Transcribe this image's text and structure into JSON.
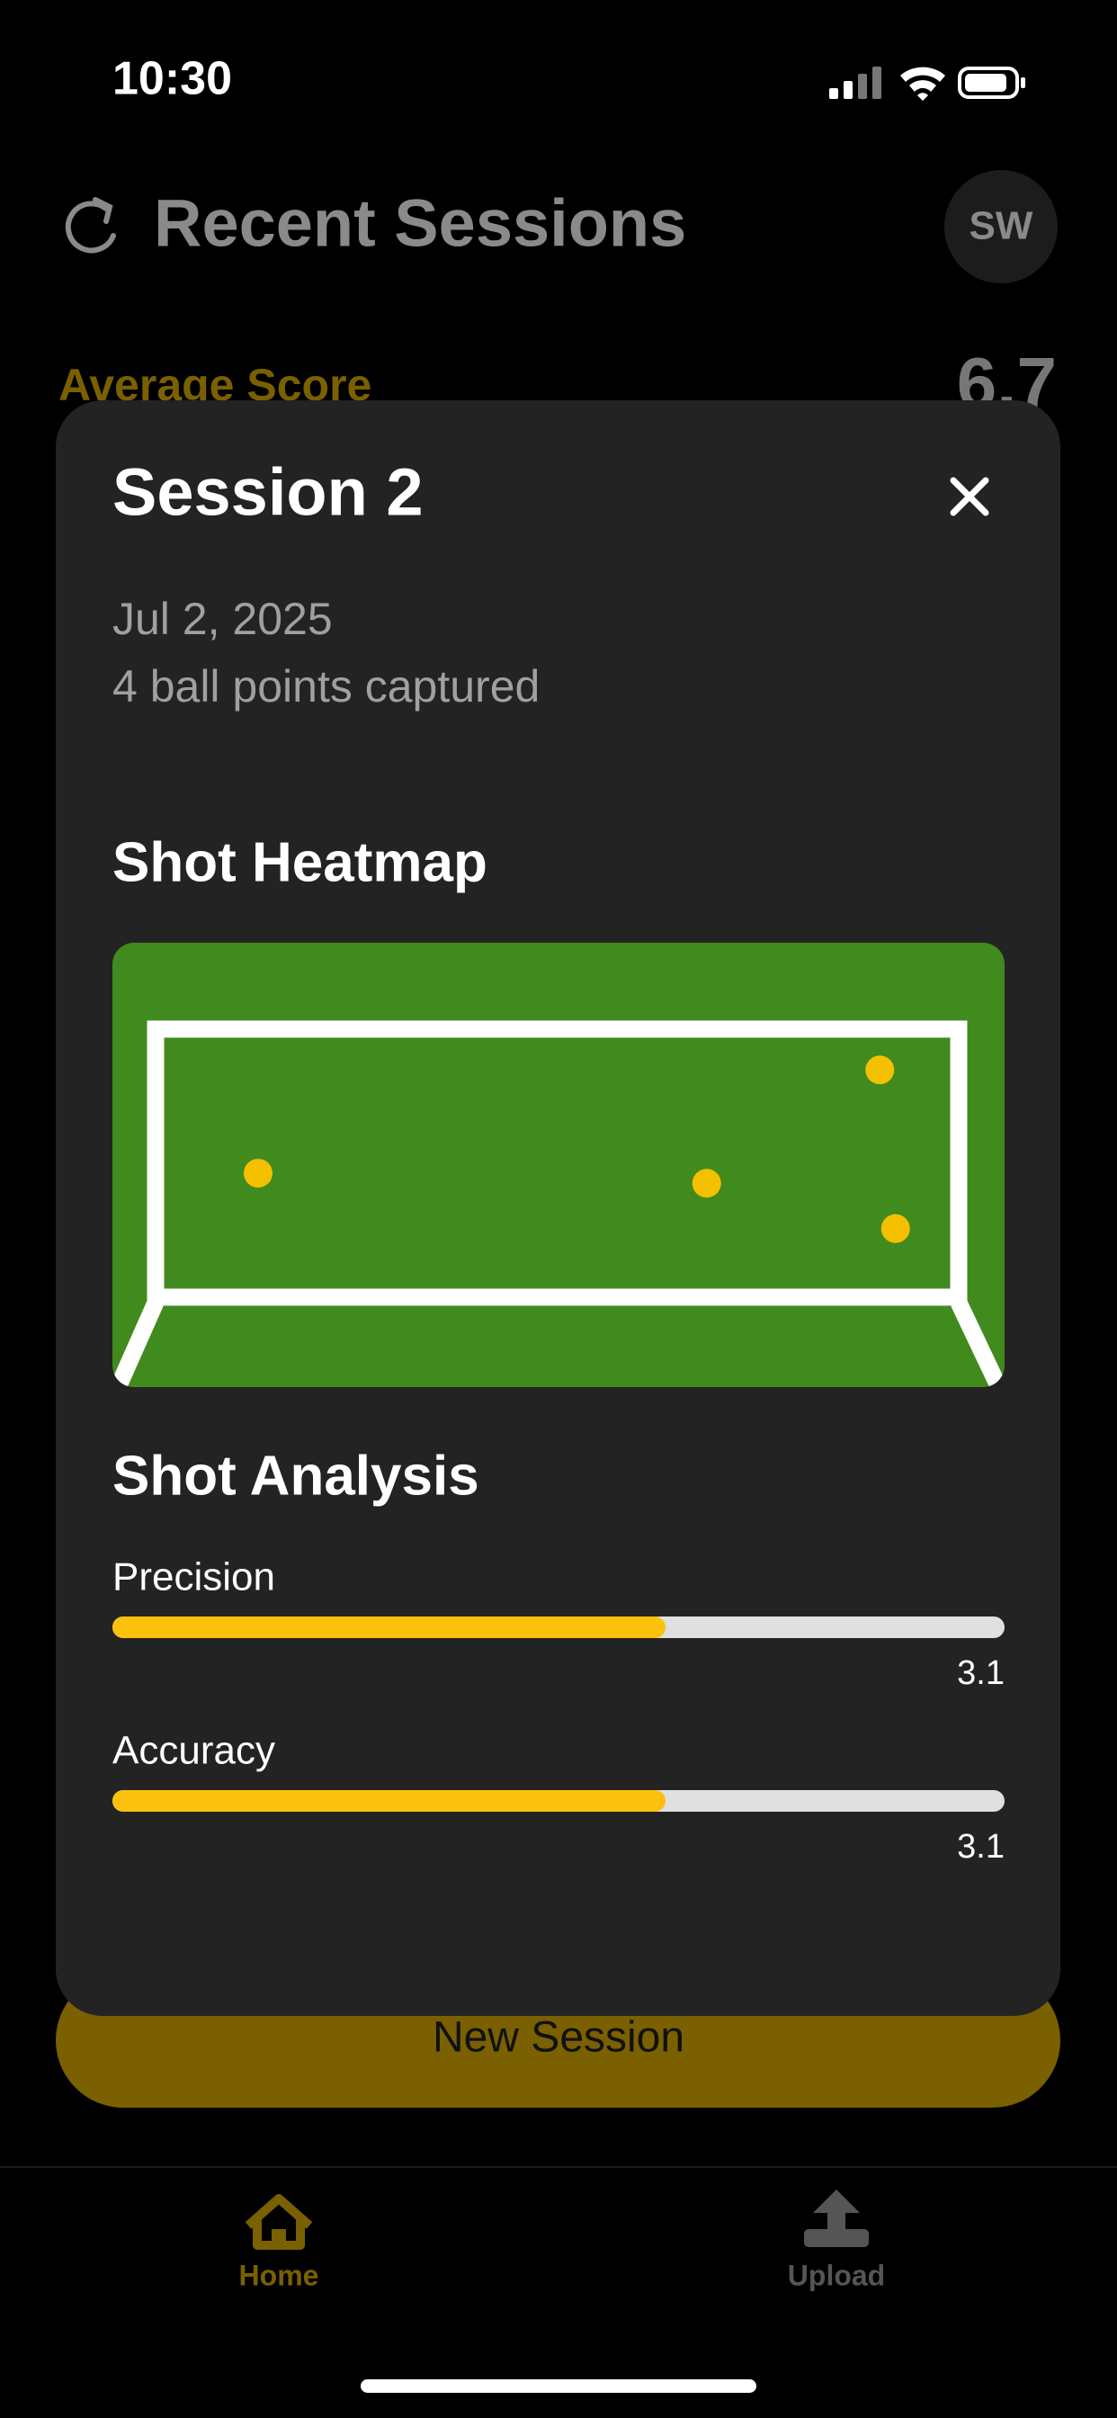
{
  "status_bar": {
    "time": "10:30"
  },
  "header": {
    "title": "Recent Sessions",
    "avatar": "SW"
  },
  "summary": {
    "label": "Average Score",
    "value": "6.7"
  },
  "modal": {
    "title": "Session 2",
    "date": "Jul 2, 2025",
    "subtitle": "4 ball points captured"
  },
  "heatmap": {
    "title": "Shot Heatmap",
    "color": "#418a1e",
    "point_color": "#f5c000",
    "points": [
      {
        "x": 0.12,
        "y": 0.54
      },
      {
        "x": 0.69,
        "y": 0.58
      },
      {
        "x": 0.91,
        "y": 0.13
      },
      {
        "x": 0.93,
        "y": 0.76
      }
    ]
  },
  "analysis": {
    "title": "Shot Analysis",
    "scale": [
      0,
      5
    ],
    "color": "#fcc10d",
    "metrics": [
      {
        "name": "Precision",
        "value": 3.1
      },
      {
        "name": "Accuracy",
        "value": 3.1
      }
    ]
  },
  "button": {
    "label": "New Session"
  },
  "tabs": [
    {
      "label": "Home"
    },
    {
      "label": "Upload"
    }
  ]
}
